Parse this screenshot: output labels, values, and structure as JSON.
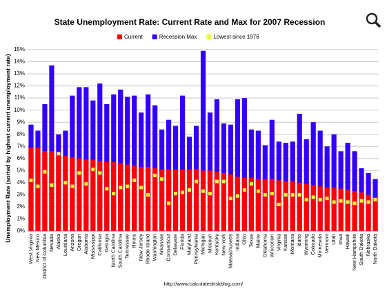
{
  "chart_data": {
    "type": "bar",
    "title": "State Unemployment Rate: Current Rate and Max for 2007 Recession",
    "y_label": "Unemployment Rate (sorted by highest current unemployment rate)",
    "source": "http://www.calculatedriskblog.com/",
    "categories": [
      "West Virginia",
      "New Mexico",
      "District of Columbia",
      "Nevada",
      "Alaska",
      "Louisiana",
      "Arizona",
      "Oregon",
      "Alabama",
      "Mississippi",
      "California",
      "Georgia",
      "North Carolina",
      "South Carolina",
      "Tennessee",
      "Illinois",
      "New Jersey",
      "Rhode Island",
      "Washington",
      "Arkansas",
      "Connecticut",
      "Delaware",
      "Florida",
      "Maryland",
      "Pennsylvania",
      "Michigan",
      "Missouri",
      "Kentucky",
      "New York",
      "Massachusetts",
      "Indiana",
      "Ohio",
      "Texas",
      "Maine",
      "Oklahoma",
      "Wisconsin",
      "Virginia",
      "Kansas",
      "Montana",
      "Idaho",
      "Wyoming",
      "Colorado",
      "Minnesota",
      "Vermont",
      "Utah",
      "Iowa",
      "Hawaii",
      "New Hampshire",
      "South Dakota",
      "Nebraska",
      "North Dakota"
    ],
    "series": [
      {
        "name": "Current",
        "color": "#ff0000",
        "values": [
          6.9,
          6.9,
          6.6,
          6.6,
          6.3,
          6.2,
          6.1,
          6.0,
          5.9,
          5.9,
          5.8,
          5.7,
          5.7,
          5.6,
          5.5,
          5.4,
          5.3,
          5.3,
          5.2,
          5.1,
          5.1,
          5.1,
          5.1,
          5.1,
          5.1,
          5.0,
          5.0,
          4.9,
          4.8,
          4.7,
          4.5,
          4.4,
          4.4,
          4.3,
          4.3,
          4.3,
          4.2,
          4.1,
          4.1,
          4.0,
          3.9,
          3.8,
          3.7,
          3.6,
          3.6,
          3.5,
          3.4,
          3.3,
          3.2,
          3.0,
          2.8
        ]
      },
      {
        "name": "Recession Max",
        "color": "#3300ff",
        "values": [
          8.8,
          8.3,
          10.5,
          13.7,
          8.0,
          8.3,
          11.2,
          11.9,
          11.9,
          10.8,
          12.2,
          10.5,
          11.3,
          11.7,
          11.1,
          11.2,
          9.8,
          11.3,
          10.4,
          8.4,
          9.2,
          8.7,
          11.2,
          7.8,
          8.7,
          14.9,
          9.8,
          10.9,
          8.9,
          8.8,
          10.9,
          11.0,
          8.4,
          8.3,
          7.1,
          9.2,
          7.4,
          7.3,
          7.4,
          9.7,
          7.6,
          9.0,
          8.3,
          7.0,
          8.0,
          6.6,
          7.3,
          6.6,
          5.2,
          4.8,
          4.3
        ]
      },
      {
        "name": "Lowest since 1976",
        "color": "#e6ff33",
        "values": [
          4.2,
          3.7,
          4.9,
          3.8,
          6.4,
          4.0,
          3.7,
          4.8,
          3.9,
          5.1,
          4.8,
          3.5,
          3.1,
          3.6,
          3.7,
          4.2,
          3.6,
          3.0,
          4.6,
          4.3,
          2.3,
          3.1,
          3.2,
          3.4,
          4.1,
          3.3,
          3.1,
          4.1,
          4.1,
          2.7,
          2.9,
          3.4,
          3.9,
          3.3,
          3.0,
          3.1,
          2.2,
          3.0,
          3.0,
          3.0,
          2.6,
          2.8,
          2.6,
          2.7,
          2.4,
          2.5,
          2.4,
          2.3,
          2.5,
          2.4,
          2.6
        ]
      }
    ],
    "ylim": [
      0,
      15
    ],
    "yticks": [
      {
        "value": 0,
        "label": "0%"
      },
      {
        "value": 1,
        "label": "1%"
      },
      {
        "value": 2,
        "label": "2%"
      },
      {
        "value": 3,
        "label": "3%"
      },
      {
        "value": 4,
        "label": "4%"
      },
      {
        "value": 5,
        "label": "5%"
      },
      {
        "value": 6,
        "label": "6%"
      },
      {
        "value": 7,
        "label": "7%"
      },
      {
        "value": 8,
        "label": "8%"
      },
      {
        "value": 9,
        "label": "9%"
      },
      {
        "value": 10,
        "label": "10%"
      },
      {
        "value": 11,
        "label": "11%"
      },
      {
        "value": 12,
        "label": "12%"
      },
      {
        "value": 13,
        "label": "13%"
      },
      {
        "value": 14,
        "label": "14%"
      },
      {
        "value": 15,
        "label": "15%"
      }
    ],
    "grid": true
  }
}
